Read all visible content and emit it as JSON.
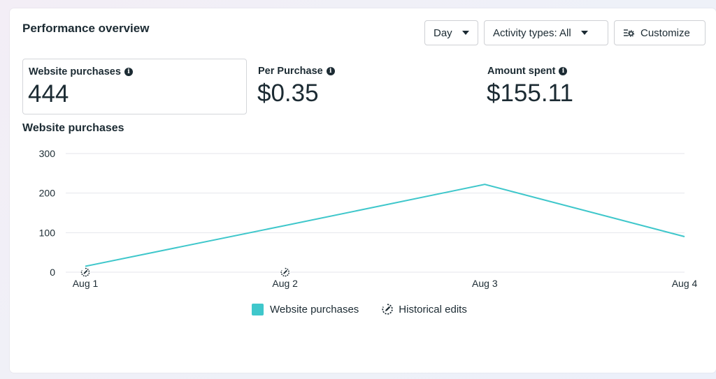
{
  "header": {
    "title": "Performance overview",
    "day_label": "Day",
    "activity_label": "Activity types: All",
    "customize_label": "Customize"
  },
  "metrics": [
    {
      "label": "Website purchases",
      "value": "444",
      "selected": true
    },
    {
      "label": "Per Purchase",
      "value": "$0.35",
      "selected": false
    },
    {
      "label": "Amount spent",
      "value": "$155.11",
      "selected": false
    }
  ],
  "chart_data": {
    "type": "line",
    "title": "Website purchases",
    "categories": [
      "Aug 1",
      "Aug 2",
      "Aug 3",
      "Aug 4"
    ],
    "series": [
      {
        "name": "Website purchases",
        "values": [
          15,
          118,
          222,
          90
        ],
        "color": "#3fc7cb"
      }
    ],
    "yticks": [
      0,
      100,
      200,
      300
    ],
    "ylim": [
      0,
      300
    ],
    "grid": true,
    "historical_edit_markers": [
      "Aug 1",
      "Aug 2"
    ],
    "legend": [
      "Website purchases",
      "Historical edits"
    ],
    "legend_position": "bottom-center"
  },
  "colors": {
    "series": "#3fc7cb",
    "grid": "#e4e6eb",
    "text": "#1c2b33"
  }
}
